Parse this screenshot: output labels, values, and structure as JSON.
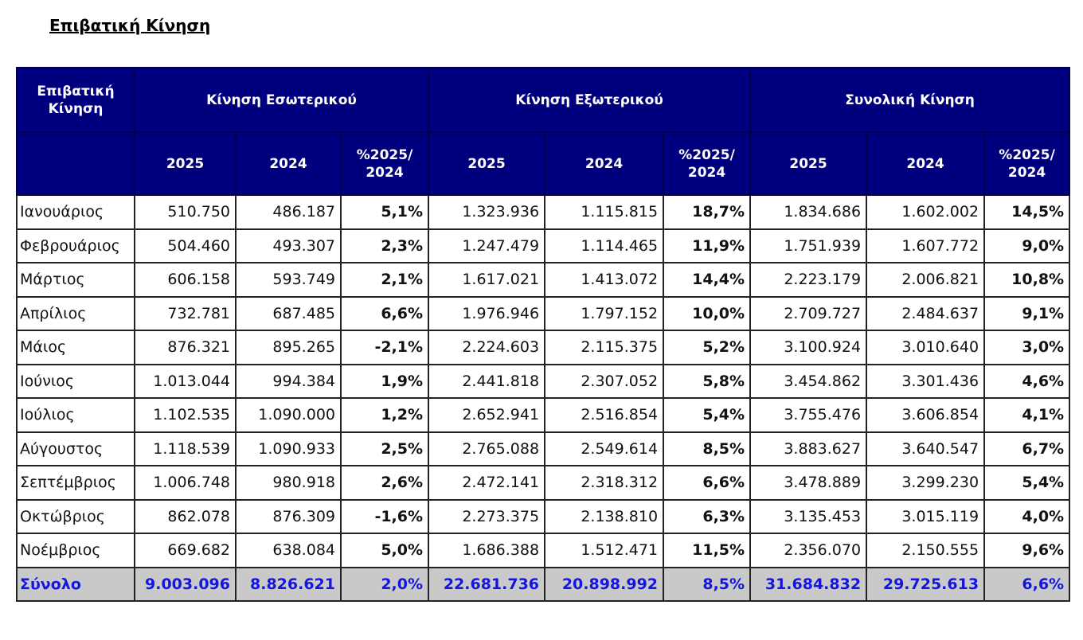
{
  "title": "Επιβατική Κίνηση",
  "colors": {
    "header_bg": "#00007e",
    "total_bg": "#c9c9c9",
    "total_text": "#1515e0"
  },
  "table": {
    "corner_header": "Επιβατική Κίνηση",
    "groups": [
      "Κίνηση Εσωτερικού",
      "Κίνηση Εξωτερικού",
      "Συνολική Κίνηση"
    ],
    "subheaders": [
      "2025",
      "2024",
      "%2025/ 2024"
    ],
    "rows": [
      [
        "Ιανουάριος",
        "510.750",
        "486.187",
        "5,1%",
        "1.323.936",
        "1.115.815",
        "18,7%",
        "1.834.686",
        "1.602.002",
        "14,5%"
      ],
      [
        "Φεβρουάριος",
        "504.460",
        "493.307",
        "2,3%",
        "1.247.479",
        "1.114.465",
        "11,9%",
        "1.751.939",
        "1.607.772",
        "9,0%"
      ],
      [
        "Μάρτιος",
        "606.158",
        "593.749",
        "2,1%",
        "1.617.021",
        "1.413.072",
        "14,4%",
        "2.223.179",
        "2.006.821",
        "10,8%"
      ],
      [
        "Απρίλιος",
        "732.781",
        "687.485",
        "6,6%",
        "1.976.946",
        "1.797.152",
        "10,0%",
        "2.709.727",
        "2.484.637",
        "9,1%"
      ],
      [
        "Μάιος",
        "876.321",
        "895.265",
        "-2,1%",
        "2.224.603",
        "2.115.375",
        "5,2%",
        "3.100.924",
        "3.010.640",
        "3,0%"
      ],
      [
        "Ιούνιος",
        "1.013.044",
        "994.384",
        "1,9%",
        "2.441.818",
        "2.307.052",
        "5,8%",
        "3.454.862",
        "3.301.436",
        "4,6%"
      ],
      [
        "Ιούλιος",
        "1.102.535",
        "1.090.000",
        "1,2%",
        "2.652.941",
        "2.516.854",
        "5,4%",
        "3.755.476",
        "3.606.854",
        "4,1%"
      ],
      [
        "Αύγουστος",
        "1.118.539",
        "1.090.933",
        "2,5%",
        "2.765.088",
        "2.549.614",
        "8,5%",
        "3.883.627",
        "3.640.547",
        "6,7%"
      ],
      [
        "Σεπτέμβριος",
        "1.006.748",
        "980.918",
        "2,6%",
        "2.472.141",
        "2.318.312",
        "6,6%",
        "3.478.889",
        "3.299.230",
        "5,4%"
      ],
      [
        "Οκτώβριος",
        "862.078",
        "876.309",
        "-1,6%",
        "2.273.375",
        "2.138.810",
        "6,3%",
        "3.135.453",
        "3.015.119",
        "4,0%"
      ],
      [
        "Νοέμβριος",
        "669.682",
        "638.084",
        "5,0%",
        "1.686.388",
        "1.512.471",
        "11,5%",
        "2.356.070",
        "2.150.555",
        "9,6%"
      ]
    ],
    "total": [
      "Σύνολο",
      "9.003.096",
      "8.826.621",
      "2,0%",
      "22.681.736",
      "20.898.992",
      "8,5%",
      "31.684.832",
      "29.725.613",
      "6,6%"
    ]
  }
}
